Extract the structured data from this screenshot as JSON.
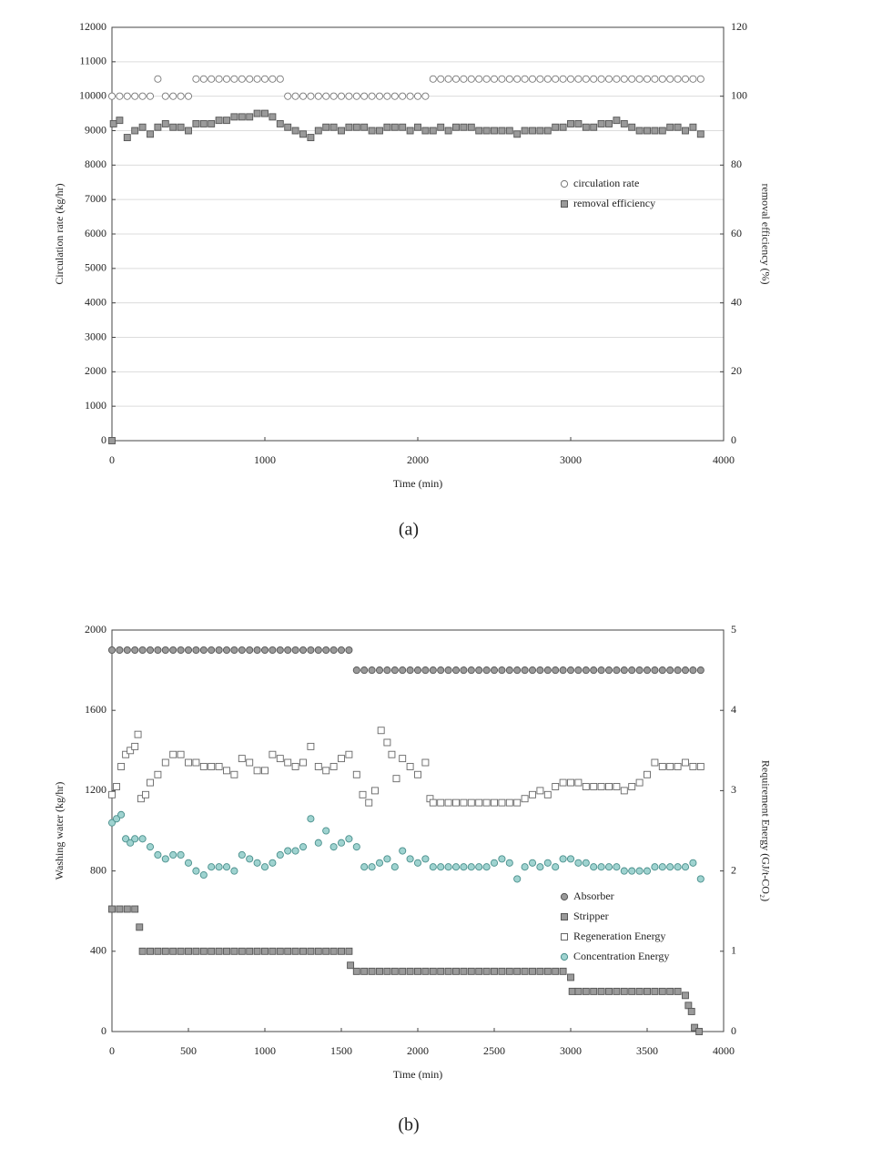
{
  "chart_data": [
    {
      "type": "scatter",
      "caption": "(a)",
      "xlabel": "Time (min)",
      "ylabel": "Circulation rate (kg/hr)",
      "y2label": "removal efficiency (%)",
      "xlim": [
        0,
        4000
      ],
      "xticks": [
        0,
        1000,
        2000,
        3000,
        4000
      ],
      "ylim": [
        0,
        12000
      ],
      "yticks": [
        0,
        1000,
        2000,
        3000,
        4000,
        5000,
        6000,
        7000,
        8000,
        9000,
        10000,
        11000,
        12000
      ],
      "y2lim": [
        0,
        120
      ],
      "y2ticks": [
        0,
        20,
        40,
        60,
        80,
        100,
        120
      ],
      "grid": true,
      "legend": "center right",
      "series": [
        {
          "name": "circulation rate",
          "marker": "circle",
          "color": "#ffffff",
          "edgecolor": "#777777",
          "x": [
            0,
            50,
            100,
            150,
            200,
            250,
            300,
            350,
            400,
            450,
            500,
            550,
            600,
            650,
            700,
            750,
            800,
            850,
            900,
            950,
            1000,
            1050,
            1100,
            1150,
            1200,
            1250,
            1300,
            1350,
            1400,
            1450,
            1500,
            1550,
            1600,
            1650,
            1700,
            1750,
            1800,
            1850,
            1900,
            1950,
            2000,
            2050,
            2100,
            2150,
            2200,
            2250,
            2300,
            2350,
            2400,
            2450,
            2500,
            2550,
            2600,
            2650,
            2700,
            2750,
            2800,
            2850,
            2900,
            2950,
            3000,
            3050,
            3100,
            3150,
            3200,
            3250,
            3300,
            3350,
            3400,
            3450,
            3500,
            3550,
            3600,
            3650,
            3700,
            3750,
            3800,
            3850
          ],
          "values": [
            10000,
            10000,
            10000,
            10000,
            10000,
            10000,
            10500,
            10000,
            10000,
            10000,
            10000,
            10500,
            10500,
            10500,
            10500,
            10500,
            10500,
            10500,
            10500,
            10500,
            10500,
            10500,
            10500,
            10000,
            10000,
            10000,
            10000,
            10000,
            10000,
            10000,
            10000,
            10000,
            10000,
            10000,
            10000,
            10000,
            10000,
            10000,
            10000,
            10000,
            10000,
            10000,
            10500,
            10500,
            10500,
            10500,
            10500,
            10500,
            10500,
            10500,
            10500,
            10500,
            10500,
            10500,
            10500,
            10500,
            10500,
            10500,
            10500,
            10500,
            10500,
            10500,
            10500,
            10500,
            10500,
            10500,
            10500,
            10500,
            10500,
            10500,
            10500,
            10500,
            10500,
            10500,
            10500,
            10500,
            10500,
            10500
          ]
        },
        {
          "name": "removal efficiency",
          "marker": "square",
          "color": "#9a9a9a",
          "edgecolor": "#555555",
          "axis": "y2",
          "x": [
            0,
            10,
            50,
            100,
            150,
            200,
            250,
            300,
            350,
            400,
            450,
            500,
            550,
            600,
            650,
            700,
            750,
            800,
            850,
            900,
            950,
            1000,
            1050,
            1100,
            1150,
            1200,
            1250,
            1300,
            1350,
            1400,
            1450,
            1500,
            1550,
            1600,
            1650,
            1700,
            1750,
            1800,
            1850,
            1900,
            1950,
            2000,
            2050,
            2100,
            2150,
            2200,
            2250,
            2300,
            2350,
            2400,
            2450,
            2500,
            2550,
            2600,
            2650,
            2700,
            2750,
            2800,
            2850,
            2900,
            2950,
            3000,
            3050,
            3100,
            3150,
            3200,
            3250,
            3300,
            3350,
            3400,
            3450,
            3500,
            3550,
            3600,
            3650,
            3700,
            3750,
            3800,
            3850
          ],
          "values": [
            0,
            92,
            93,
            88,
            90,
            91,
            89,
            91,
            92,
            91,
            91,
            90,
            92,
            92,
            92,
            93,
            93,
            94,
            94,
            94,
            95,
            95,
            94,
            92,
            91,
            90,
            89,
            88,
            90,
            91,
            91,
            90,
            91,
            91,
            91,
            90,
            90,
            91,
            91,
            91,
            90,
            91,
            90,
            90,
            91,
            90,
            91,
            91,
            91,
            90,
            90,
            90,
            90,
            90,
            89,
            90,
            90,
            90,
            90,
            91,
            91,
            92,
            92,
            91,
            91,
            92,
            92,
            93,
            92,
            91,
            90,
            90,
            90,
            90,
            91,
            91,
            90,
            91,
            89
          ]
        }
      ]
    },
    {
      "type": "scatter",
      "caption": "(b)",
      "xlabel": "Time (min)",
      "ylabel": "Washing water (kg/hr)",
      "y2label": "Requirement Energy (GJ/t-CO₂)",
      "xlim": [
        0,
        4000
      ],
      "xticks": [
        0,
        500,
        1000,
        1500,
        2000,
        2500,
        3000,
        3500,
        4000
      ],
      "ylim": [
        0,
        2000
      ],
      "yticks": [
        0,
        400,
        800,
        1200,
        1600,
        2000
      ],
      "y2lim": [
        0,
        5
      ],
      "y2ticks": [
        0,
        1,
        2,
        3,
        4,
        5
      ],
      "grid": false,
      "legend": "lower right",
      "series": [
        {
          "name": "Absorber",
          "marker": "circle",
          "color": "#9a9a9a",
          "edgecolor": "#555555",
          "x": [
            0,
            50,
            100,
            150,
            200,
            250,
            300,
            350,
            400,
            450,
            500,
            550,
            600,
            650,
            700,
            750,
            800,
            850,
            900,
            950,
            1000,
            1050,
            1100,
            1150,
            1200,
            1250,
            1300,
            1350,
            1400,
            1450,
            1500,
            1550,
            1600,
            1650,
            1700,
            1750,
            1800,
            1850,
            1900,
            1950,
            2000,
            2050,
            2100,
            2150,
            2200,
            2250,
            2300,
            2350,
            2400,
            2450,
            2500,
            2550,
            2600,
            2650,
            2700,
            2750,
            2800,
            2850,
            2900,
            2950,
            3000,
            3050,
            3100,
            3150,
            3200,
            3250,
            3300,
            3350,
            3400,
            3450,
            3500,
            3550,
            3600,
            3650,
            3700,
            3750,
            3800,
            3850
          ],
          "values": [
            1900,
            1900,
            1900,
            1900,
            1900,
            1900,
            1900,
            1900,
            1900,
            1900,
            1900,
            1900,
            1900,
            1900,
            1900,
            1900,
            1900,
            1900,
            1900,
            1900,
            1900,
            1900,
            1900,
            1900,
            1900,
            1900,
            1900,
            1900,
            1900,
            1900,
            1900,
            1900,
            1800,
            1800,
            1800,
            1800,
            1800,
            1800,
            1800,
            1800,
            1800,
            1800,
            1800,
            1800,
            1800,
            1800,
            1800,
            1800,
            1800,
            1800,
            1800,
            1800,
            1800,
            1800,
            1800,
            1800,
            1800,
            1800,
            1800,
            1800,
            1800,
            1800,
            1800,
            1800,
            1800,
            1800,
            1800,
            1800,
            1800,
            1800,
            1800,
            1800,
            1800,
            1800,
            1800,
            1800,
            1800,
            1800
          ]
        },
        {
          "name": "Stripper",
          "marker": "square",
          "color": "#9a9a9a",
          "edgecolor": "#555555",
          "x": [
            0,
            50,
            100,
            150,
            180,
            200,
            250,
            300,
            350,
            400,
            450,
            500,
            550,
            600,
            650,
            700,
            750,
            800,
            850,
            900,
            950,
            1000,
            1050,
            1100,
            1150,
            1200,
            1250,
            1300,
            1350,
            1400,
            1450,
            1500,
            1550,
            1560,
            1600,
            1650,
            1700,
            1750,
            1800,
            1850,
            1900,
            1950,
            2000,
            2050,
            2100,
            2150,
            2200,
            2250,
            2300,
            2350,
            2400,
            2450,
            2500,
            2550,
            2600,
            2650,
            2700,
            2750,
            2800,
            2850,
            2900,
            2950,
            3000,
            3010,
            3050,
            3100,
            3150,
            3200,
            3250,
            3300,
            3350,
            3400,
            3450,
            3500,
            3550,
            3600,
            3650,
            3700,
            3750,
            3770,
            3790,
            3810,
            3840
          ],
          "values": [
            610,
            610,
            610,
            610,
            520,
            400,
            400,
            400,
            400,
            400,
            400,
            400,
            400,
            400,
            400,
            400,
            400,
            400,
            400,
            400,
            400,
            400,
            400,
            400,
            400,
            400,
            400,
            400,
            400,
            400,
            400,
            400,
            400,
            330,
            300,
            300,
            300,
            300,
            300,
            300,
            300,
            300,
            300,
            300,
            300,
            300,
            300,
            300,
            300,
            300,
            300,
            300,
            300,
            300,
            300,
            300,
            300,
            300,
            300,
            300,
            300,
            300,
            270,
            200,
            200,
            200,
            200,
            200,
            200,
            200,
            200,
            200,
            200,
            200,
            200,
            200,
            200,
            200,
            180,
            130,
            100,
            20,
            0
          ]
        },
        {
          "name": "Regeneration Energy",
          "marker": "square",
          "color": "#ffffff",
          "edgecolor": "#666666",
          "axis": "y2",
          "x": [
            0,
            30,
            60,
            90,
            120,
            150,
            170,
            190,
            220,
            250,
            300,
            350,
            400,
            450,
            500,
            550,
            600,
            650,
            700,
            750,
            800,
            850,
            900,
            950,
            1000,
            1050,
            1100,
            1150,
            1200,
            1250,
            1300,
            1350,
            1400,
            1450,
            1500,
            1550,
            1600,
            1640,
            1680,
            1720,
            1760,
            1800,
            1830,
            1860,
            1900,
            1950,
            2000,
            2050,
            2080,
            2100,
            2150,
            2200,
            2250,
            2300,
            2350,
            2400,
            2450,
            2500,
            2550,
            2600,
            2650,
            2700,
            2750,
            2800,
            2850,
            2900,
            2950,
            3000,
            3050,
            3100,
            3150,
            3200,
            3250,
            3300,
            3350,
            3400,
            3450,
            3500,
            3550,
            3600,
            3650,
            3700,
            3750,
            3800,
            3850
          ],
          "values": [
            2.95,
            3.05,
            3.3,
            3.45,
            3.5,
            3.55,
            3.7,
            2.9,
            2.95,
            3.1,
            3.2,
            3.35,
            3.45,
            3.45,
            3.35,
            3.35,
            3.3,
            3.3,
            3.3,
            3.25,
            3.2,
            3.4,
            3.35,
            3.25,
            3.25,
            3.45,
            3.4,
            3.35,
            3.3,
            3.35,
            3.55,
            3.3,
            3.25,
            3.3,
            3.4,
            3.45,
            3.2,
            2.95,
            2.85,
            3.0,
            3.75,
            3.6,
            3.45,
            3.15,
            3.4,
            3.3,
            3.2,
            3.35,
            2.9,
            2.85,
            2.85,
            2.85,
            2.85,
            2.85,
            2.85,
            2.85,
            2.85,
            2.85,
            2.85,
            2.85,
            2.85,
            2.9,
            2.95,
            3.0,
            2.95,
            3.05,
            3.1,
            3.1,
            3.1,
            3.05,
            3.05,
            3.05,
            3.05,
            3.05,
            3.0,
            3.05,
            3.1,
            3.2,
            3.35,
            3.3,
            3.3,
            3.3,
            3.35,
            3.3,
            3.3
          ]
        },
        {
          "name": "Concentration Energy",
          "marker": "circle",
          "color": "#9fd3d0",
          "edgecolor": "#4a8f8c",
          "axis": "y2",
          "x": [
            0,
            30,
            60,
            90,
            120,
            150,
            200,
            250,
            300,
            350,
            400,
            450,
            500,
            550,
            600,
            650,
            700,
            750,
            800,
            850,
            900,
            950,
            1000,
            1050,
            1100,
            1150,
            1200,
            1250,
            1300,
            1350,
            1400,
            1450,
            1500,
            1550,
            1600,
            1650,
            1700,
            1750,
            1800,
            1850,
            1900,
            1950,
            2000,
            2050,
            2100,
            2150,
            2200,
            2250,
            2300,
            2350,
            2400,
            2450,
            2500,
            2550,
            2600,
            2650,
            2700,
            2750,
            2800,
            2850,
            2900,
            2950,
            3000,
            3050,
            3100,
            3150,
            3200,
            3250,
            3300,
            3350,
            3400,
            3450,
            3500,
            3550,
            3600,
            3650,
            3700,
            3750,
            3800,
            3850
          ],
          "values": [
            2.6,
            2.65,
            2.7,
            2.4,
            2.35,
            2.4,
            2.4,
            2.3,
            2.2,
            2.15,
            2.2,
            2.2,
            2.1,
            2.0,
            1.95,
            2.05,
            2.05,
            2.05,
            2.0,
            2.2,
            2.15,
            2.1,
            2.05,
            2.1,
            2.2,
            2.25,
            2.25,
            2.3,
            2.65,
            2.35,
            2.5,
            2.3,
            2.35,
            2.4,
            2.3,
            2.05,
            2.05,
            2.1,
            2.15,
            2.05,
            2.25,
            2.15,
            2.1,
            2.15,
            2.05,
            2.05,
            2.05,
            2.05,
            2.05,
            2.05,
            2.05,
            2.05,
            2.1,
            2.15,
            2.1,
            1.9,
            2.05,
            2.1,
            2.05,
            2.1,
            2.05,
            2.15,
            2.15,
            2.1,
            2.1,
            2.05,
            2.05,
            2.05,
            2.05,
            2.0,
            2.0,
            2.0,
            2.0,
            2.05,
            2.05,
            2.05,
            2.05,
            2.05,
            2.1,
            1.9
          ]
        }
      ]
    }
  ]
}
